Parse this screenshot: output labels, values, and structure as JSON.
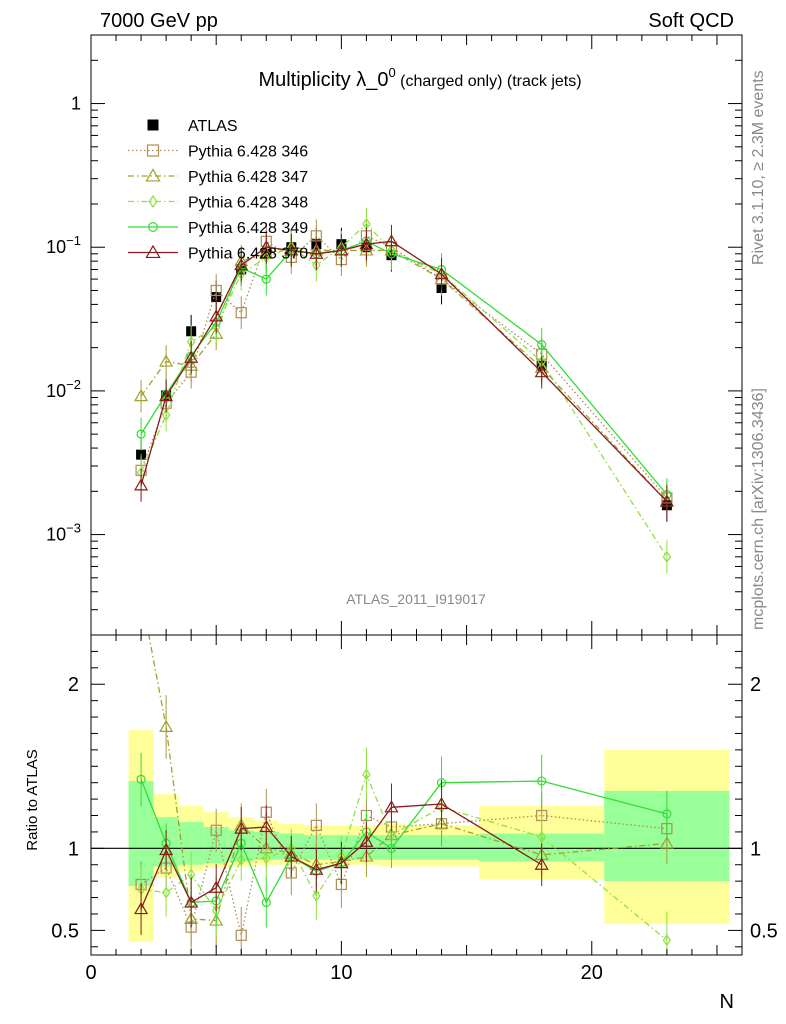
{
  "header": {
    "left": "7000 GeV pp",
    "right": "Soft QCD"
  },
  "side_text": {
    "rivet": "Rivet 3.1.10, ≥ 2.3M events",
    "mcplots": "mcplots.cern.ch [arXiv:1306.3436]"
  },
  "analysis_id": "ATLAS_2011_I919017",
  "chart_data": [
    {
      "type": "scatter",
      "title_main": "Multiplicity λ_0",
      "title_sup": "0",
      "title_suffix": " (charged only) (track jets)",
      "xlabel": "N",
      "ylabel": "",
      "xlim": [
        0,
        26
      ],
      "ylim": [
        0.0002,
        3
      ],
      "yscale": "log",
      "y_ticks": [
        "10^-3",
        "10^-2",
        "10^-1",
        "1"
      ],
      "x": [
        2,
        3,
        4,
        5,
        6,
        7,
        8,
        9,
        10,
        11,
        12,
        14,
        18,
        23
      ],
      "legend_position": "top-left",
      "series": [
        {
          "name": "ATLAS",
          "color": "#000000",
          "marker": "square-filled",
          "style": "none",
          "values": [
            0.0036,
            0.0093,
            0.026,
            0.045,
            0.07,
            0.09,
            0.1,
            0.105,
            0.105,
            0.1,
            0.088,
            0.052,
            0.015,
            0.0016
          ]
        },
        {
          "name": "Pythia 6.428 346",
          "color": "#b08d57",
          "marker": "square-open",
          "style": "dotted",
          "values": [
            0.0028,
            0.0082,
            0.0135,
            0.05,
            0.035,
            0.11,
            0.085,
            0.12,
            0.082,
            0.12,
            0.1,
            0.06,
            0.018,
            0.0018
          ]
        },
        {
          "name": "Pythia 6.428 347",
          "color": "#a0a030",
          "marker": "triangle-open",
          "style": "dashdot",
          "values": [
            0.0092,
            0.016,
            0.015,
            0.025,
            0.08,
            0.09,
            0.1,
            0.095,
            0.095,
            0.095,
            0.095,
            0.06,
            0.0145,
            0.0017
          ]
        },
        {
          "name": "Pythia 6.428 348",
          "color": "#90e040",
          "marker": "diamond-open",
          "style": "dashdot",
          "values": [
            0.0027,
            0.0068,
            0.022,
            0.028,
            0.065,
            0.085,
            0.1,
            0.075,
            0.1,
            0.145,
            0.095,
            0.065,
            0.016,
            0.0007
          ]
        },
        {
          "name": "Pythia 6.428 349",
          "color": "#33dd33",
          "marker": "circle-open",
          "style": "solid",
          "values": [
            0.005,
            0.0095,
            0.0175,
            0.03,
            0.072,
            0.06,
            0.095,
            0.09,
            0.095,
            0.11,
            0.09,
            0.07,
            0.021,
            0.0019
          ]
        },
        {
          "name": "Pythia 6.428 370",
          "color": "#8b1a1a",
          "marker": "triangle-open",
          "style": "solid",
          "values": [
            0.0022,
            0.0092,
            0.017,
            0.033,
            0.075,
            0.1,
            0.095,
            0.09,
            0.095,
            0.105,
            0.11,
            0.065,
            0.0135,
            0.0017
          ]
        }
      ]
    },
    {
      "type": "line",
      "ylabel": "Ratio to ATLAS",
      "xlabel": "N",
      "xlim": [
        0,
        26
      ],
      "ylim": [
        0.35,
        2.3
      ],
      "x_ticks": [
        0,
        10,
        20
      ],
      "y_ticks": [
        0.5,
        1,
        2
      ],
      "bands": {
        "outer_color": "#ffff99",
        "inner_color": "#99ff99",
        "bins": [
          {
            "x": [
              1.5,
              2.5
            ],
            "outer": [
              0.43,
              1.72
            ],
            "inner": [
              0.77,
              1.41
            ]
          },
          {
            "x": [
              2.5,
              3.5
            ],
            "outer": [
              0.82,
              1.33
            ],
            "inner": [
              0.89,
              1.19
            ]
          },
          {
            "x": [
              3.5,
              4.5
            ],
            "outer": [
              0.86,
              1.26
            ],
            "inner": [
              0.9,
              1.16
            ]
          },
          {
            "x": [
              4.5,
              5.5
            ],
            "outer": [
              0.88,
              1.22
            ],
            "inner": [
              0.91,
              1.13
            ]
          },
          {
            "x": [
              5.5,
              6.5
            ],
            "outer": [
              0.89,
              1.19
            ],
            "inner": [
              0.92,
              1.11
            ]
          },
          {
            "x": [
              6.5,
              7.5
            ],
            "outer": [
              0.9,
              1.17
            ],
            "inner": [
              0.93,
              1.1
            ]
          },
          {
            "x": [
              7.5,
              8.5
            ],
            "outer": [
              0.9,
              1.15
            ],
            "inner": [
              0.93,
              1.09
            ]
          },
          {
            "x": [
              8.5,
              9.5
            ],
            "outer": [
              0.9,
              1.14
            ],
            "inner": [
              0.93,
              1.08
            ]
          },
          {
            "x": [
              9.5,
              10.5
            ],
            "outer": [
              0.9,
              1.14
            ],
            "inner": [
              0.93,
              1.08
            ]
          },
          {
            "x": [
              10.5,
              11.5
            ],
            "outer": [
              0.9,
              1.14
            ],
            "inner": [
              0.93,
              1.08
            ]
          },
          {
            "x": [
              11.5,
              12.5
            ],
            "outer": [
              0.89,
              1.15
            ],
            "inner": [
              0.93,
              1.08
            ]
          },
          {
            "x": [
              12.5,
              15.5
            ],
            "outer": [
              0.89,
              1.14
            ],
            "inner": [
              0.93,
              1.08
            ]
          },
          {
            "x": [
              15.5,
              20.5
            ],
            "outer": [
              0.81,
              1.26
            ],
            "inner": [
              0.92,
              1.09
            ]
          },
          {
            "x": [
              20.5,
              25.5
            ],
            "outer": [
              0.54,
              1.6
            ],
            "inner": [
              0.8,
              1.35
            ]
          }
        ]
      },
      "series": [
        {
          "name": "Pythia 6.428 346",
          "color": "#b08d57",
          "marker": "square-open",
          "style": "dotted",
          "values": [
            0.78,
            0.88,
            0.52,
            1.11,
            0.47,
            1.22,
            0.85,
            1.14,
            0.78,
            1.2,
            1.13,
            1.15,
            1.2,
            1.12
          ]
        },
        {
          "name": "Pythia 6.428 347",
          "color": "#a0a030",
          "marker": "triangle-open",
          "style": "dashdot",
          "values": [
            2.55,
            1.74,
            0.57,
            0.56,
            1.14,
            1.0,
            0.97,
            0.9,
            0.92,
            0.95,
            1.08,
            1.15,
            0.96,
            1.03
          ]
        },
        {
          "name": "Pythia 6.428 348",
          "color": "#90e040",
          "marker": "diamond-open",
          "style": "dashdot",
          "values": [
            0.75,
            0.73,
            0.84,
            0.62,
            0.93,
            0.94,
            1.0,
            0.71,
            0.95,
            1.45,
            1.08,
            1.25,
            1.07,
            0.44
          ]
        },
        {
          "name": "Pythia 6.428 349",
          "color": "#33dd33",
          "marker": "circle-open",
          "style": "solid",
          "values": [
            1.42,
            1.03,
            0.67,
            0.68,
            1.03,
            0.67,
            0.95,
            0.86,
            0.91,
            1.1,
            1.0,
            1.4,
            1.41,
            1.21
          ]
        },
        {
          "name": "Pythia 6.428 370",
          "color": "#8b1a1a",
          "marker": "triangle-open",
          "style": "solid",
          "values": [
            0.63,
            0.99,
            0.67,
            0.76,
            1.12,
            1.13,
            0.95,
            0.87,
            0.91,
            1.04,
            1.25,
            1.27,
            0.9,
            null
          ]
        }
      ]
    }
  ]
}
